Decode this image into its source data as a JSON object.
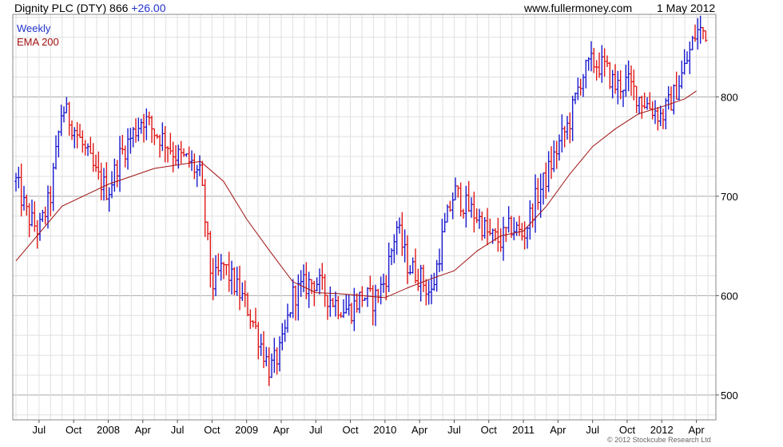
{
  "header": {
    "instrument": "Dignity PLC (DTY)",
    "last": "866",
    "change": "+26.00",
    "site": "www.fullermoney.com",
    "date": "1 May 2012"
  },
  "footer": {
    "copyright": "© 2012 Stockcube Research Ltd"
  },
  "colors": {
    "up": "#1a1ad0",
    "down": "#e01818",
    "ema": "#a01010",
    "grid": "#c8c8c8",
    "legend_weekly": "#2233cc",
    "legend_ema": "#a01010"
  },
  "chart_data": {
    "type": "line",
    "title": "Dignity PLC (DTY) 866 +26.00",
    "xlabel": "",
    "ylabel": "",
    "ylim": [
      475,
      883
    ],
    "y_ticks": [
      500,
      600,
      700,
      800
    ],
    "y_axis_side": "right",
    "grid": true,
    "legend": "top-left",
    "x_tick_labels": [
      "Jul",
      "Oct",
      "2008",
      "Apr",
      "Jul",
      "Oct",
      "2009",
      "Apr",
      "Jul",
      "Oct",
      "2010",
      "Apr",
      "Jul",
      "Oct",
      "2011",
      "Apr",
      "Jul",
      "Oct",
      "2012",
      "Apr"
    ],
    "series": [
      {
        "name": "Weekly",
        "style": "price bars (high-low), blue = up week, red = down week",
        "x": [
          "2007-05",
          "2007-06",
          "2007-07",
          "2007-08",
          "2007-09",
          "2007-10",
          "2007-11",
          "2007-12",
          "2008-01",
          "2008-02",
          "2008-03",
          "2008-04",
          "2008-05",
          "2008-06",
          "2008-07",
          "2008-08",
          "2008-09",
          "2008-10",
          "2008-11",
          "2008-12",
          "2009-01",
          "2009-02",
          "2009-03",
          "2009-04",
          "2009-05",
          "2009-06",
          "2009-07",
          "2009-08",
          "2009-09",
          "2009-10",
          "2009-11",
          "2009-12",
          "2010-01",
          "2010-02",
          "2010-03",
          "2010-04",
          "2010-05",
          "2010-06",
          "2010-07",
          "2010-08",
          "2010-09",
          "2010-10",
          "2010-11",
          "2010-12",
          "2011-01",
          "2011-02",
          "2011-03",
          "2011-04",
          "2011-05",
          "2011-06",
          "2011-07",
          "2011-08",
          "2011-09",
          "2011-10",
          "2011-11",
          "2011-12",
          "2012-01",
          "2012-02",
          "2012-03",
          "2012-04"
        ],
        "values": [
          715,
          680,
          665,
          700,
          790,
          770,
          745,
          720,
          705,
          740,
          760,
          780,
          765,
          755,
          740,
          735,
          720,
          610,
          630,
          610,
          590,
          560,
          525,
          545,
          600,
          610,
          615,
          600,
          590,
          585,
          600,
          595,
          615,
          670,
          630,
          620,
          600,
          660,
          705,
          690,
          680,
          660,
          655,
          670,
          660,
          695,
          720,
          750,
          775,
          820,
          835,
          830,
          810,
          815,
          800,
          790,
          780,
          800,
          830,
          866
        ]
      },
      {
        "name": "EMA 200",
        "x": [
          "2007-05",
          "2007-09",
          "2008-01",
          "2008-05",
          "2008-09",
          "2008-11",
          "2009-01",
          "2009-03",
          "2009-05",
          "2009-07",
          "2009-09",
          "2009-11",
          "2010-01",
          "2010-03",
          "2010-05",
          "2010-07",
          "2010-09",
          "2010-11",
          "2011-01",
          "2011-03",
          "2011-05",
          "2011-07",
          "2011-09",
          "2011-11",
          "2012-01",
          "2012-03",
          "2012-04"
        ],
        "values": [
          635,
          690,
          712,
          728,
          735,
          715,
          677,
          645,
          614,
          603,
          602,
          600,
          598,
          608,
          617,
          625,
          645,
          660,
          665,
          690,
          722,
          750,
          768,
          783,
          790,
          798,
          806
        ]
      }
    ]
  }
}
